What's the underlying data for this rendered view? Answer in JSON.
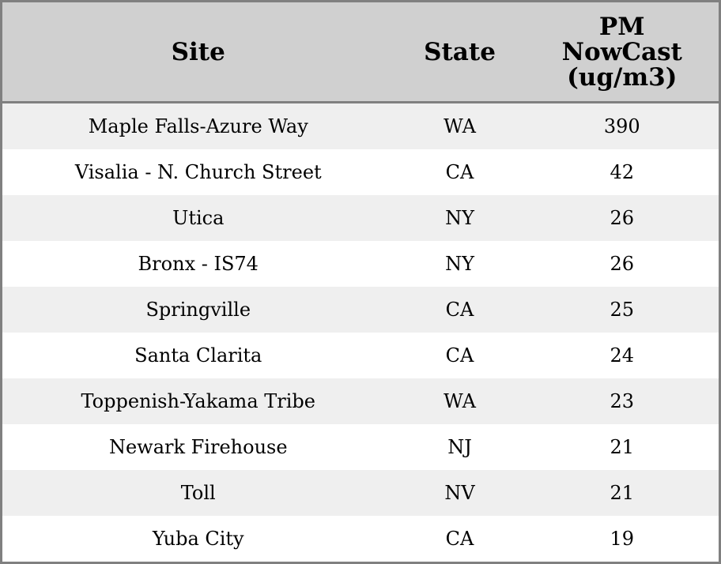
{
  "table": {
    "headers": [
      "Site",
      "State",
      "PM NowCast (ug/m3)"
    ],
    "rows": [
      [
        "Maple Falls-Azure Way",
        "WA",
        "390"
      ],
      [
        "Visalia - N. Church Street",
        "CA",
        "42"
      ],
      [
        "Utica",
        "NY",
        "26"
      ],
      [
        "Bronx - IS74",
        "NY",
        "26"
      ],
      [
        "Springville",
        "CA",
        "25"
      ],
      [
        "Santa Clarita",
        "CA",
        "24"
      ],
      [
        "Toppenish-Yakama Tribe",
        "WA",
        "23"
      ],
      [
        "Newark Firehouse",
        "NJ",
        "21"
      ],
      [
        "Toll",
        "NV",
        "21"
      ],
      [
        "Yuba City",
        "CA",
        "19"
      ]
    ]
  },
  "colors": {
    "header_bg": "#d0d0d0",
    "stripe_bg": "#efefef",
    "border": "#808080"
  }
}
